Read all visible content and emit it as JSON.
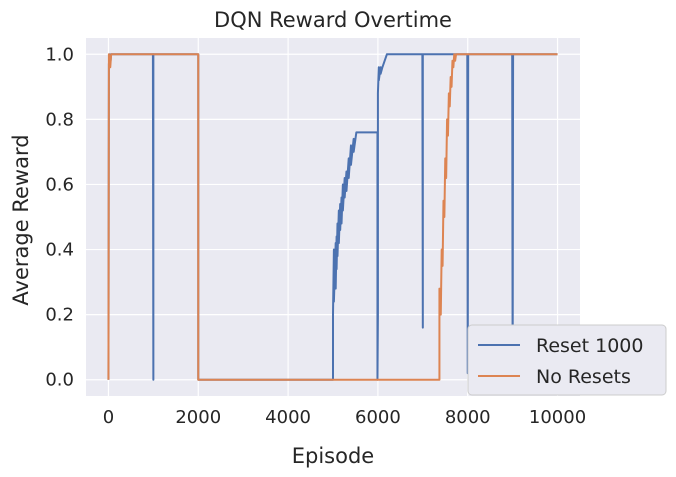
{
  "chart_data": {
    "type": "line",
    "title": "DQN Reward Overtime",
    "xlabel": "Episode",
    "ylabel": "Average Reward",
    "xlim": [
      -500,
      10500
    ],
    "ylim": [
      -0.05,
      1.05
    ],
    "xticks": [
      0,
      2000,
      4000,
      6000,
      8000,
      10000
    ],
    "xtick_labels": [
      "0",
      "2000",
      "4000",
      "6000",
      "8000",
      "10000"
    ],
    "yticks": [
      0.0,
      0.2,
      0.4,
      0.6,
      0.8,
      1.0
    ],
    "ytick_labels": [
      "0.0",
      "0.2",
      "0.4",
      "0.6",
      "0.8",
      "1.0"
    ],
    "grid": true,
    "background": "#eaeaf2",
    "legend_position": "lower-right",
    "series": [
      {
        "name": "Reset 1000",
        "color": "#4c72b0",
        "x": [
          0,
          10,
          30,
          40,
          60,
          80,
          990,
          1000,
          1000,
          1010,
          1020,
          2000,
          2000,
          5000,
          5000,
          5020,
          5020,
          5060,
          5060,
          5080,
          5080,
          5100,
          5100,
          5130,
          5130,
          5160,
          5160,
          5190,
          5190,
          5220,
          5220,
          5260,
          5260,
          5300,
          5300,
          5350,
          5350,
          5400,
          5400,
          5460,
          5460,
          5520,
          5520,
          5600,
          5600,
          5990,
          5990,
          6000,
          6000,
          6020,
          6020,
          6060,
          6060,
          6100,
          6100,
          6200,
          6200,
          6990,
          7000,
          7000,
          7010,
          7990,
          8000,
          8010,
          8990,
          9000,
          9010,
          9990,
          10000
        ],
        "y": [
          0.0,
          0.97,
          1.0,
          0.97,
          1.0,
          1.0,
          1.0,
          0.0,
          1.0,
          1.0,
          1.0,
          1.0,
          0.0,
          0.0,
          0.2,
          0.4,
          0.24,
          0.42,
          0.28,
          0.44,
          0.34,
          0.48,
          0.38,
          0.52,
          0.42,
          0.54,
          0.46,
          0.56,
          0.48,
          0.6,
          0.52,
          0.62,
          0.56,
          0.64,
          0.58,
          0.68,
          0.62,
          0.72,
          0.66,
          0.74,
          0.7,
          0.76,
          0.76,
          0.76,
          0.76,
          0.76,
          0.0,
          0.2,
          0.88,
          0.96,
          0.92,
          0.96,
          0.94,
          0.96,
          0.96,
          1.0,
          1.0,
          1.0,
          0.16,
          1.0,
          1.0,
          1.0,
          0.02,
          1.0,
          1.0,
          0.0,
          1.0,
          1.0,
          1.0
        ]
      },
      {
        "name": "No Resets",
        "color": "#dd8452",
        "x": [
          0,
          5,
          10,
          40,
          60,
          80,
          1990,
          2000,
          2000,
          3000,
          4000,
          5000,
          6000,
          7000,
          7350,
          7370,
          7370,
          7400,
          7420,
          7440,
          7460,
          7480,
          7500,
          7520,
          7540,
          7560,
          7580,
          7600,
          7620,
          7640,
          7660,
          7680,
          7700,
          7720,
          7740,
          7760,
          7780,
          8000,
          9000,
          10000
        ],
        "y": [
          0.0,
          0.5,
          1.0,
          0.96,
          1.0,
          1.0,
          1.0,
          1.0,
          0.0,
          0.0,
          0.0,
          0.0,
          0.0,
          0.0,
          0.0,
          0.0,
          0.28,
          0.2,
          0.4,
          0.35,
          0.55,
          0.5,
          0.68,
          0.62,
          0.8,
          0.75,
          0.88,
          0.84,
          0.93,
          0.9,
          0.98,
          0.96,
          1.0,
          0.98,
          1.0,
          1.0,
          1.0,
          1.0,
          1.0,
          1.0
        ]
      }
    ]
  }
}
